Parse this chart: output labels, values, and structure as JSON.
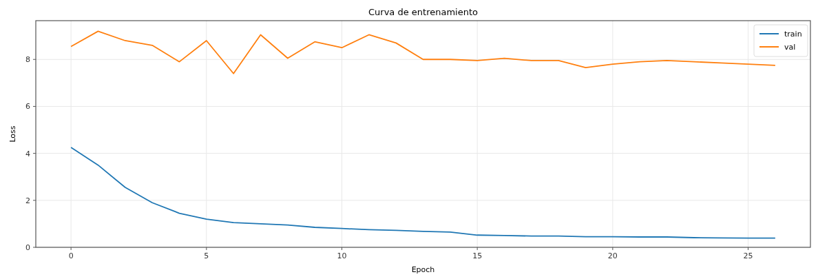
{
  "chart_data": {
    "type": "line",
    "title": "Curva de entrenamiento",
    "xlabel": "Epoch",
    "ylabel": "Loss",
    "x": [
      0,
      1,
      2,
      3,
      4,
      5,
      6,
      7,
      8,
      9,
      10,
      11,
      12,
      13,
      14,
      15,
      16,
      17,
      18,
      19,
      20,
      21,
      22,
      23,
      24,
      25,
      26
    ],
    "series": [
      {
        "name": "train",
        "color": "#1f77b4",
        "values": [
          4.25,
          3.5,
          2.55,
          1.9,
          1.45,
          1.2,
          1.05,
          1.0,
          0.95,
          0.85,
          0.8,
          0.75,
          0.72,
          0.68,
          0.65,
          0.52,
          0.5,
          0.48,
          0.48,
          0.45,
          0.45,
          0.44,
          0.44,
          0.41,
          0.4,
          0.39,
          0.39
        ]
      },
      {
        "name": "val",
        "color": "#ff7f0e",
        "values": [
          8.55,
          9.2,
          8.8,
          8.6,
          7.9,
          8.8,
          7.4,
          9.05,
          8.05,
          8.75,
          8.5,
          9.05,
          8.7,
          8.0,
          8.0,
          7.95,
          8.05,
          7.95,
          7.95,
          7.65,
          7.8,
          7.9,
          7.95,
          7.9,
          7.85,
          7.8,
          7.75
        ]
      }
    ],
    "xlim": [
      -1.3,
      27.3
    ],
    "xticks": [
      0,
      5,
      10,
      15,
      20,
      25
    ],
    "ylim": [
      0,
      9.65
    ],
    "yticks": [
      0,
      2,
      4,
      6,
      8
    ],
    "grid": true,
    "legend": "top right",
    "marker": "none",
    "line_style": "solid"
  }
}
